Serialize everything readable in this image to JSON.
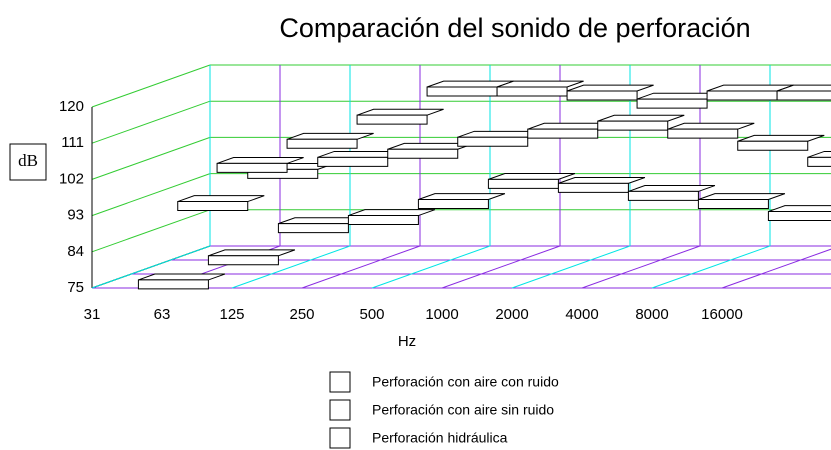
{
  "chart_data": {
    "type": "ribbon3d",
    "title": "Comparación del sonido de perforación",
    "x_label": "Hz",
    "y_label": "dB",
    "categories": [
      "31",
      "63",
      "125",
      "250",
      "500",
      "1000",
      "2000",
      "4000",
      "8000",
      "16000"
    ],
    "series": [
      {
        "name": "Perforación con aire con ruido",
        "color": "#ffffff",
        "values": [
          98,
          104,
          110,
          117,
          117,
          116,
          114,
          116,
          116,
          117
        ]
      },
      {
        "name": "Perforación con aire sin ruido",
        "color": "#ffffff",
        "values": [
          92,
          100,
          103,
          105,
          108,
          110,
          112,
          110,
          107,
          103
        ]
      },
      {
        "name": "Perforación hidráulica",
        "color": "#ffffff",
        "values": [
          76,
          82,
          90,
          92,
          96,
          101,
          100,
          98,
          96,
          93
        ]
      }
    ],
    "ylim": [
      75,
      120
    ],
    "yticks": [
      75,
      84,
      93,
      102,
      111,
      120
    ],
    "grid": true
  }
}
